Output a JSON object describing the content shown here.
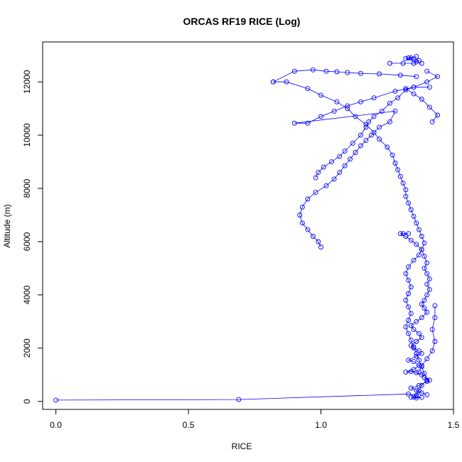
{
  "chart_data": {
    "type": "line",
    "title": "ORCAS RF19 RICE (Log)",
    "xlabel": "RICE",
    "ylabel": "Altitude (m)",
    "xlim": [
      -0.05,
      1.5
    ],
    "ylim": [
      -300,
      13500
    ],
    "xticks": [
      0.0,
      0.5,
      1.0,
      1.5
    ],
    "xtick_labels": [
      "0.0",
      "0.5",
      "1.0",
      "1.5"
    ],
    "yticks": [
      0,
      2000,
      4000,
      6000,
      8000,
      10000,
      12000
    ],
    "ytick_labels": [
      "0",
      "2000",
      "4000",
      "6000",
      "8000",
      "10000",
      "12000"
    ],
    "grid": false,
    "marker": "open-circle",
    "color": "#0000ff",
    "series": [
      {
        "segments": [
          [
            [
              0.0,
              50
            ],
            [
              0.69,
              70
            ],
            [
              1.33,
              280
            ],
            [
              1.36,
              220
            ],
            [
              1.35,
              170
            ],
            [
              1.38,
              150
            ],
            [
              1.36,
              130
            ],
            [
              1.34,
              160
            ]
          ],
          [
            [
              1.4,
              250
            ],
            [
              1.38,
              320
            ],
            [
              1.36,
              420
            ],
            [
              1.34,
              500
            ],
            [
              1.37,
              600
            ],
            [
              1.4,
              750
            ],
            [
              1.41,
              800
            ],
            [
              1.39,
              900
            ],
            [
              1.38,
              1000
            ],
            [
              1.36,
              1080
            ],
            [
              1.34,
              1120
            ],
            [
              1.32,
              1100
            ],
            [
              1.35,
              1200
            ],
            [
              1.37,
              1350
            ],
            [
              1.35,
              1500
            ],
            [
              1.33,
              1550
            ],
            [
              1.36,
              1700
            ],
            [
              1.38,
              1800
            ],
            [
              1.37,
              1900
            ],
            [
              1.35,
              2000
            ],
            [
              1.34,
              2100
            ],
            [
              1.36,
              2250
            ],
            [
              1.38,
              2400
            ],
            [
              1.37,
              2550
            ],
            [
              1.35,
              2700
            ],
            [
              1.34,
              2850
            ],
            [
              1.36,
              3000
            ],
            [
              1.38,
              3150
            ],
            [
              1.4,
              3350
            ],
            [
              1.39,
              3500
            ],
            [
              1.38,
              3650
            ],
            [
              1.39,
              3800
            ],
            [
              1.4,
              4000
            ],
            [
              1.41,
              4200
            ],
            [
              1.4,
              4400
            ],
            [
              1.41,
              4600
            ],
            [
              1.4,
              4800
            ],
            [
              1.39,
              5000
            ],
            [
              1.4,
              5200
            ],
            [
              1.39,
              5450
            ],
            [
              1.38,
              5700
            ],
            [
              1.39,
              5950
            ],
            [
              1.38,
              6200
            ],
            [
              1.37,
              6450
            ],
            [
              1.36,
              6700
            ],
            [
              1.35,
              6950
            ],
            [
              1.34,
              7200
            ],
            [
              1.33,
              7450
            ],
            [
              1.32,
              7700
            ],
            [
              1.32,
              7950
            ],
            [
              1.31,
              8200
            ],
            [
              1.3,
              8450
            ],
            [
              1.29,
              8700
            ],
            [
              1.28,
              8950
            ],
            [
              1.27,
              9250
            ],
            [
              1.25,
              9550
            ],
            [
              1.22,
              9850
            ],
            [
              1.2,
              10100
            ],
            [
              1.17,
              10400
            ],
            [
              1.13,
              10700
            ],
            [
              1.1,
              11000
            ],
            [
              1.06,
              11250
            ],
            [
              1.0,
              11500
            ],
            [
              0.95,
              11750
            ],
            [
              0.87,
              12000
            ],
            [
              0.82,
              12000
            ]
          ],
          [
            [
              0.82,
              12000
            ],
            [
              0.9,
              12400
            ],
            [
              0.97,
              12450
            ],
            [
              1.02,
              12400
            ],
            [
              1.06,
              12380
            ],
            [
              1.1,
              12350
            ],
            [
              1.15,
              12320
            ],
            [
              1.22,
              12300
            ],
            [
              1.3,
              12250
            ],
            [
              1.36,
              12200
            ]
          ],
          [
            [
              1.26,
              12700
            ],
            [
              1.31,
              12700
            ],
            [
              1.35,
              12700
            ],
            [
              1.36,
              12750
            ],
            [
              1.37,
              12800
            ],
            [
              1.35,
              12850
            ],
            [
              1.33,
              12900
            ],
            [
              1.36,
              12950
            ],
            [
              1.34,
              12900
            ],
            [
              1.32,
              12880
            ],
            [
              1.38,
              12700
            ]
          ],
          [
            [
              1.4,
              12400
            ],
            [
              1.44,
              12200
            ],
            [
              1.4,
              12000
            ],
            [
              1.35,
              11800
            ],
            [
              1.28,
              11650
            ],
            [
              1.2,
              11400
            ],
            [
              1.15,
              11250
            ],
            [
              1.1,
              11100
            ],
            [
              1.05,
              10900
            ],
            [
              1.0,
              10700
            ],
            [
              0.95,
              10450
            ],
            [
              0.9,
              10450
            ],
            [
              1.28,
              10900
            ],
            [
              1.26,
              10500
            ],
            [
              1.22,
              10300
            ],
            [
              1.19,
              10000
            ],
            [
              1.17,
              9800
            ],
            [
              1.15,
              9600
            ],
            [
              1.13,
              9350
            ],
            [
              1.11,
              9100
            ],
            [
              1.09,
              8850
            ],
            [
              1.07,
              8600
            ],
            [
              1.05,
              8350
            ],
            [
              1.02,
              8100
            ],
            [
              0.98,
              7850
            ],
            [
              0.95,
              7600
            ],
            [
              0.93,
              7300
            ],
            [
              0.92,
              7000
            ],
            [
              0.93,
              6700
            ],
            [
              0.95,
              6450
            ],
            [
              0.97,
              6200
            ],
            [
              0.99,
              6000
            ],
            [
              1.0,
              5800
            ]
          ],
          [
            [
              1.33,
              6300
            ],
            [
              1.31,
              6300
            ],
            [
              1.3,
              6300
            ],
            [
              1.32,
              6200
            ],
            [
              1.34,
              6050
            ],
            [
              1.36,
              5900
            ],
            [
              1.38,
              5700
            ],
            [
              1.37,
              5500
            ],
            [
              1.35,
              5300
            ],
            [
              1.33,
              5050
            ],
            [
              1.32,
              4800
            ],
            [
              1.33,
              4550
            ],
            [
              1.34,
              4300
            ],
            [
              1.33,
              4050
            ],
            [
              1.32,
              3800
            ],
            [
              1.33,
              3550
            ],
            [
              1.34,
              3300
            ],
            [
              1.33,
              3050
            ],
            [
              1.32,
              2800
            ],
            [
              1.33,
              2550
            ],
            [
              1.34,
              2300
            ],
            [
              1.35,
              2050
            ],
            [
              1.36,
              1800
            ],
            [
              1.37,
              1550
            ],
            [
              1.38,
              1300
            ],
            [
              1.39,
              1050
            ],
            [
              1.4,
              800
            ],
            [
              1.38,
              600
            ],
            [
              1.37,
              400
            ],
            [
              1.36,
              200
            ]
          ],
          [
            [
              1.43,
              3600
            ],
            [
              1.43,
              3150
            ],
            [
              1.42,
              2700
            ],
            [
              1.43,
              2250
            ],
            [
              1.42,
              1900
            ],
            [
              1.4,
              1600
            ],
            [
              1.38,
              1350
            ],
            [
              1.37,
              1100
            ]
          ],
          [
            [
              1.41,
              11800
            ],
            [
              1.35,
              11800
            ],
            [
              1.32,
              11700
            ],
            [
              1.29,
              11400
            ],
            [
              1.26,
              11200
            ],
            [
              1.23,
              10900
            ],
            [
              1.2,
              10700
            ],
            [
              1.18,
              10500
            ],
            [
              1.17,
              10300
            ],
            [
              1.15,
              10000
            ],
            [
              1.12,
              9700
            ],
            [
              1.09,
              9400
            ],
            [
              1.07,
              9200
            ],
            [
              1.04,
              9000
            ],
            [
              1.01,
              8800
            ],
            [
              0.99,
              8600
            ],
            [
              0.98,
              8400
            ]
          ],
          [
            [
              1.42,
              10500
            ],
            [
              1.44,
              10750
            ],
            [
              1.41,
              11050
            ],
            [
              1.38,
              11350
            ],
            [
              1.35,
              11550
            ],
            [
              1.32,
              11750
            ]
          ]
        ]
      }
    ]
  }
}
